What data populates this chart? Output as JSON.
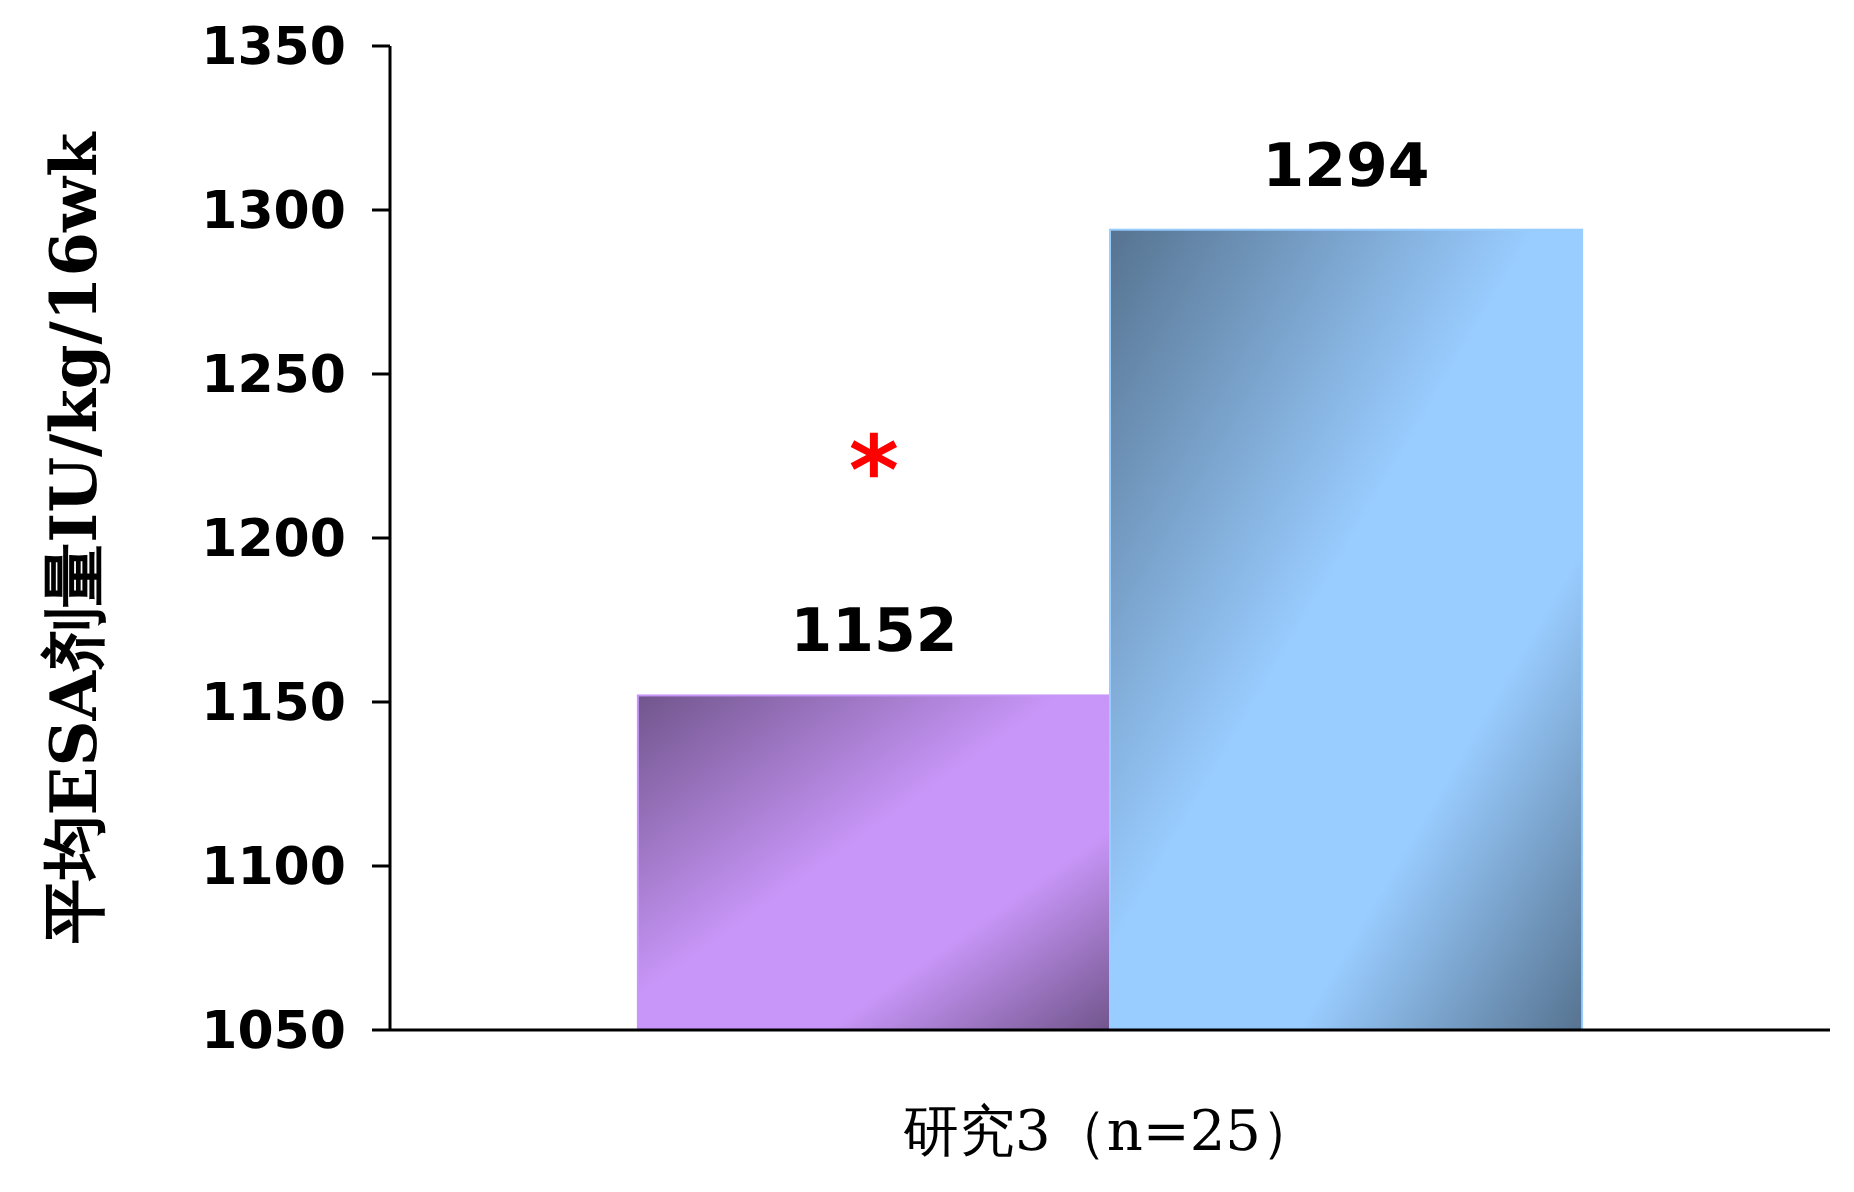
{
  "chart_data": {
    "type": "bar",
    "ylabel": "平均ESA剂量IU/kg/16wk",
    "categories": [
      "研究3（n=25）"
    ],
    "series": [
      {
        "color": "#c896f8",
        "values": [
          1152
        ]
      },
      {
        "color": "#99ccff",
        "values": [
          1294
        ]
      }
    ],
    "ylim": [
      1050,
      1350
    ],
    "yticks": [
      1050,
      1100,
      1150,
      1200,
      1250,
      1300,
      1350
    ],
    "data_labels": true,
    "grid": false,
    "annotations": [
      {
        "text": "*",
        "x": "研究3（n=25）",
        "y": 1225
      }
    ]
  }
}
